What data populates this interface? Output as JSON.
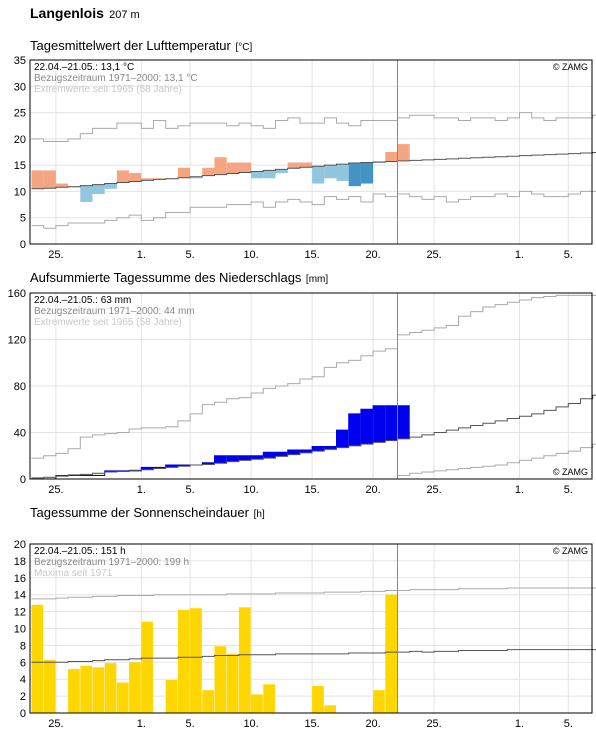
{
  "station": {
    "name": "Langenlois",
    "elevation": "207 m"
  },
  "x_ticks": [
    "25.",
    "1.",
    "5.",
    "10.",
    "15.",
    "20.",
    "25.",
    "1.",
    "5."
  ],
  "chart_data": [
    {
      "type": "bar",
      "title": "Tagesmittelwert der Lufttemperatur",
      "unit": "[°C]",
      "info_lines": [
        "22.04.–21.05.: 13,1 °C",
        "Bezugszeitraum 1971–2000: 13,1 °C",
        "Extremwerte seit 1965 (58 Jahre)"
      ],
      "credit": "© ZAMG",
      "ylim": [
        0,
        35
      ],
      "y_ticks": [
        0,
        5,
        10,
        15,
        20,
        25,
        30,
        35
      ],
      "x_days": [
        -1,
        0,
        1,
        2,
        3,
        4,
        5,
        6,
        7,
        8,
        9,
        10,
        11,
        12,
        13,
        14,
        15,
        16,
        17,
        18,
        19,
        20,
        21,
        22,
        23,
        24,
        25,
        26,
        27,
        28,
        29,
        30,
        31,
        32,
        33,
        34,
        35,
        36,
        37,
        38,
        39,
        40,
        41,
        42,
        43,
        44,
        45
      ],
      "daily_values": [
        14,
        14,
        11.5,
        11,
        8,
        9.5,
        10.5,
        14,
        13.5,
        12.5,
        12.5,
        12.5,
        14.5,
        12.5,
        14.5,
        16.5,
        15.5,
        15.5,
        12.5,
        12.5,
        13.5,
        15.5,
        15.5,
        11.5,
        12.5,
        12,
        11,
        11.5,
        15.5,
        17.5,
        19
      ],
      "normal_mean": [
        10.5,
        10.6,
        10.8,
        10.9,
        11.1,
        11.3,
        11.5,
        11.7,
        11.9,
        12.1,
        12.3,
        12.4,
        12.6,
        12.8,
        13,
        13.2,
        13.4,
        13.6,
        13.8,
        14,
        14.2,
        14.4,
        14.6,
        14.8,
        15,
        15.2,
        15.4,
        15.5,
        15.6,
        15.7,
        15.8,
        15.9,
        16,
        16.1,
        16.2,
        16.3,
        16.4,
        16.5,
        16.6,
        16.7,
        16.8,
        16.9,
        17,
        17.1,
        17.2,
        17.3,
        17.4
      ],
      "max_envelope": [
        20,
        19.5,
        19.5,
        20,
        21,
        22,
        22,
        23,
        23,
        22,
        23.5,
        22,
        22.5,
        23,
        23,
        23,
        22.5,
        23,
        22.5,
        22,
        23.5,
        24,
        23,
        23,
        24,
        23,
        22.5,
        23.5,
        23.5,
        23.5,
        24,
        24.5,
        24.5,
        24,
        24,
        23.5,
        24,
        24,
        23.5,
        24,
        25,
        24,
        23.5,
        24,
        24,
        24,
        24.5
      ],
      "min_envelope": [
        3.5,
        3,
        3.5,
        4,
        4,
        4,
        4.5,
        5,
        5.5,
        4.5,
        5,
        6,
        6,
        7,
        7,
        7,
        7.5,
        7.5,
        8,
        7,
        8,
        8.5,
        8,
        7.5,
        9,
        8.5,
        9,
        8,
        9.5,
        9,
        9.5,
        9,
        8.5,
        9,
        8,
        8.5,
        9,
        9,
        9.5,
        9,
        10,
        9.5,
        9,
        9,
        9.5,
        10,
        10
      ]
    },
    {
      "type": "bar",
      "title": "Aufsummierte Tagessumme des Niederschlags",
      "unit": "[mm]",
      "info_lines": [
        "22.04.–21.05.: 63 mm",
        "Bezugszeitraum 1971–2000: 44 mm",
        "Extremwerte seit 1965 (58 Jahre)"
      ],
      "credit": "© ZAMG",
      "ylim": [
        0,
        160
      ],
      "y_ticks": [
        0,
        40,
        80,
        120,
        160
      ],
      "x_days": [
        -1,
        0,
        1,
        2,
        3,
        4,
        5,
        6,
        7,
        8,
        9,
        10,
        11,
        12,
        13,
        14,
        15,
        16,
        17,
        18,
        19,
        20,
        21,
        22,
        23,
        24,
        25,
        26,
        27,
        28,
        29,
        30,
        31,
        32,
        33,
        34,
        35,
        36,
        37,
        38,
        39,
        40,
        41,
        42,
        43,
        44,
        45
      ],
      "daily_values": [
        0,
        0,
        3,
        3,
        3,
        3,
        7,
        7,
        7,
        10,
        10,
        12,
        12,
        12,
        14,
        20,
        20,
        20,
        20,
        23,
        23,
        25,
        25,
        28,
        28,
        42,
        56,
        60,
        63,
        63,
        63
      ],
      "normal_mean": [
        1,
        1.5,
        2.5,
        3.5,
        4,
        5,
        6,
        6.5,
        7.5,
        8,
        9,
        10,
        11,
        12,
        12.5,
        13.5,
        15,
        16,
        17,
        18,
        19.5,
        21,
        22.5,
        24,
        25.5,
        27,
        28.5,
        30,
        31.5,
        33,
        34.5,
        36,
        38,
        40,
        42,
        44,
        46,
        48,
        50,
        52,
        54,
        56,
        59,
        62,
        65,
        69,
        72
      ],
      "max_envelope": [
        18,
        20,
        22,
        26,
        36,
        38,
        39,
        40,
        43,
        44,
        44,
        45,
        50,
        56,
        64,
        66,
        69,
        70,
        74,
        78,
        80,
        82,
        86,
        88,
        96,
        100,
        102,
        106,
        110,
        112,
        124,
        126,
        128,
        130,
        132,
        140,
        144,
        148,
        150,
        152,
        154,
        156,
        157,
        158,
        158,
        158,
        158
      ],
      "min_envelope": [
        0,
        0,
        0,
        0,
        0,
        0,
        0,
        0,
        0,
        0,
        0,
        0,
        0,
        0,
        0,
        0,
        0,
        0,
        0,
        0,
        0,
        0,
        0,
        0,
        0,
        0,
        0,
        0,
        0,
        0,
        3,
        5,
        6,
        7,
        8,
        9,
        10,
        11,
        12,
        14,
        16,
        18,
        20,
        22,
        24,
        27,
        30
      ]
    },
    {
      "type": "bar",
      "title": "Tagessumme der Sonnenscheindauer",
      "unit": "[h]",
      "info_lines": [
        "22.04.–21.05.: 151 h",
        "Bezugszeitraum 1971–2000: 199 h",
        "Maxima seit 1971"
      ],
      "credit": "© ZAMG",
      "ylim": [
        0,
        20
      ],
      "y_ticks": [
        0,
        2,
        4,
        6,
        8,
        10,
        12,
        14,
        16,
        18,
        20
      ],
      "x_days": [
        -1,
        0,
        1,
        2,
        3,
        4,
        5,
        6,
        7,
        8,
        9,
        10,
        11,
        12,
        13,
        14,
        15,
        16,
        17,
        18,
        19,
        20,
        21,
        22,
        23,
        24,
        25,
        26,
        27,
        28,
        29,
        30,
        31,
        32,
        33,
        34,
        35,
        36,
        37,
        38,
        39,
        40,
        41,
        42,
        43,
        44,
        45
      ],
      "daily_values": [
        12.8,
        6.3,
        0,
        5.2,
        5.6,
        5.4,
        5.9,
        3.6,
        6,
        10.8,
        0,
        3.9,
        12.2,
        12.4,
        2.7,
        7.9,
        7,
        12.5,
        2.2,
        3.4,
        0,
        0,
        0,
        3.2,
        0.9,
        0,
        0,
        0,
        2.7,
        14
      ],
      "normal_mean": [
        6,
        6,
        6,
        6.1,
        6.1,
        6.2,
        6.3,
        6.3,
        6.4,
        6.5,
        6.5,
        6.5,
        6.6,
        6.6,
        6.7,
        6.8,
        6.8,
        6.9,
        6.9,
        6.9,
        7,
        7,
        7,
        7,
        7,
        7,
        7.1,
        7.1,
        7.1,
        7.2,
        7.2,
        7.3,
        7.2,
        7.3,
        7.3,
        7.4,
        7.4,
        7.4,
        7.4,
        7.5,
        7.5,
        7.5,
        7.5,
        7.5,
        7.5,
        7.5,
        7.5
      ],
      "max_envelope": [
        13.5,
        13.5,
        13.6,
        13.7,
        13.7,
        13.8,
        13.8,
        13.9,
        13.9,
        13.9,
        14,
        14,
        14,
        14,
        14,
        14,
        14.1,
        14.1,
        14.1,
        14.1,
        14.2,
        14.2,
        14.2,
        14.2,
        14.3,
        14.3,
        14.3,
        14.4,
        14.4,
        14.5,
        14.5,
        14.6,
        14.6,
        14.6,
        14.6,
        14.7,
        14.7,
        14.7,
        14.7,
        14.8,
        14.8,
        14.8,
        14.8,
        14.8,
        14.8,
        14.8,
        14.8
      ]
    }
  ],
  "colors": {
    "temp_warm": "#f4a582",
    "temp_warm_strong": "#e06040",
    "temp_cold": "#92c5de",
    "temp_cold_strong": "#4393c3",
    "precip": "#0000ee",
    "precip_deficit_fill": "#dff0d8",
    "sun": "#ffd700",
    "envelope": "#aaaaaa",
    "mean_line": "#555555",
    "grid": "#e3e3e3",
    "axis": "#000000"
  }
}
